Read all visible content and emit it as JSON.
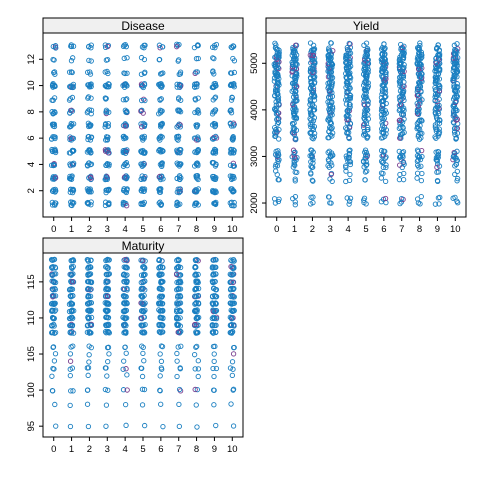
{
  "chart_data": {
    "type": "scatter",
    "layout": "lattice-3-panels",
    "colors": {
      "point_main": "#1a7fc1",
      "point_alt": "#7a3f8f",
      "strip_bg": "#f0f0f0",
      "frame": "#000000"
    },
    "panels": [
      {
        "title": "Disease",
        "xticks": [
          "0",
          "1",
          "2",
          "3",
          "4",
          "5",
          "6",
          "7",
          "8",
          "9",
          "10"
        ],
        "xlim": [
          -0.6,
          10.6
        ],
        "ylim": [
          0,
          14
        ],
        "yticks": [
          2,
          4,
          6,
          8,
          10,
          12
        ],
        "y_levels": [
          1,
          2,
          3,
          4,
          5,
          6,
          7,
          8,
          9,
          10,
          11,
          12,
          13
        ],
        "y_weights": [
          6,
          8,
          7,
          6,
          9,
          6,
          6,
          5,
          3,
          8,
          3,
          2,
          4
        ],
        "jitter_x": 0.12,
        "jitter_y": 0.15,
        "alt_fraction": 0.06
      },
      {
        "title": "Yield",
        "xticks": [
          "0",
          "1",
          "2",
          "3",
          "4",
          "5",
          "6",
          "7",
          "8",
          "9",
          "10"
        ],
        "xlim": [
          -0.6,
          10.6
        ],
        "ylim": [
          1700,
          5650
        ],
        "yticks": [
          2000,
          3000,
          4000,
          5000
        ],
        "y_levels": [
          2000,
          2100,
          2500,
          2650,
          2800,
          2900,
          3000,
          3100,
          3400,
          3500,
          3600,
          3700,
          3800,
          3900,
          4000,
          4100,
          4200,
          4300,
          4400,
          4500,
          4600,
          4700,
          4800,
          4900,
          5000,
          5100,
          5200,
          5300,
          5400
        ],
        "y_weights": [
          2,
          2,
          2,
          2,
          3,
          3,
          5,
          3,
          3,
          4,
          4,
          3,
          4,
          4,
          5,
          4,
          4,
          5,
          5,
          5,
          5,
          6,
          6,
          7,
          8,
          7,
          6,
          5,
          2
        ],
        "jitter_x": 0.14,
        "jitter_y": 40,
        "alt_fraction": 0.07
      },
      {
        "title": "Maturity",
        "xticks": [
          "0",
          "1",
          "2",
          "3",
          "4",
          "5",
          "6",
          "7",
          "8",
          "9",
          "10"
        ],
        "xlim": [
          -0.6,
          10.6
        ],
        "ylim": [
          93.5,
          119
        ],
        "yticks": [
          95,
          100,
          105,
          110,
          115
        ],
        "y_levels": [
          95,
          98,
          100,
          102,
          103,
          104,
          105,
          106,
          108,
          109,
          110,
          111,
          112,
          113,
          114,
          115,
          116,
          117,
          118
        ],
        "y_weights": [
          1,
          1,
          2,
          1,
          2,
          1,
          1,
          2,
          6,
          7,
          6,
          7,
          8,
          6,
          6,
          7,
          6,
          6,
          5
        ],
        "jitter_x": 0.12,
        "jitter_y": 0.12,
        "alt_fraction": 0.06
      }
    ]
  }
}
